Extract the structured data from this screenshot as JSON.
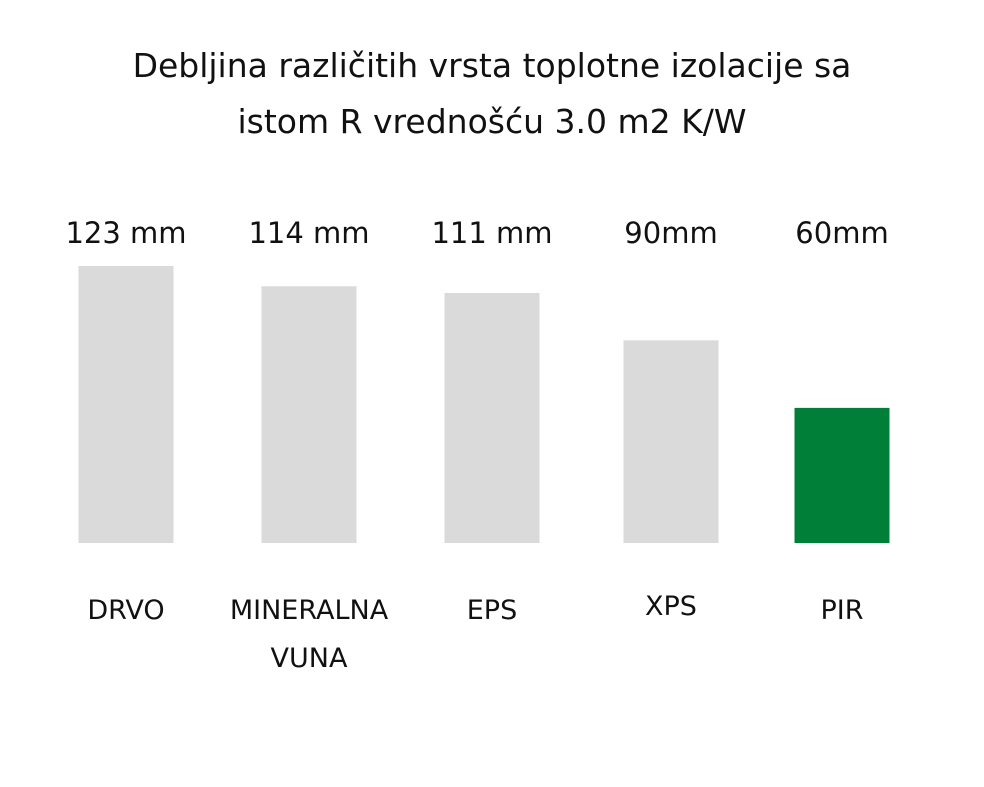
{
  "colors": {
    "background": "#ffffff",
    "default_bar": "#dadada",
    "highlight_bar": "#007f38",
    "text": "#111111"
  },
  "chart_data": {
    "type": "bar",
    "title_lines": [
      "Debljina različitih vrsta toplotne izolacije sa",
      "istom R vrednošću 3.0 m2 K/W"
    ],
    "categories": [
      "DRVO",
      "MINERALNA VUNA",
      "EPS",
      "XPS",
      "PIR"
    ],
    "category_label_lines": [
      [
        "DRVO"
      ],
      [
        "MINERALNA",
        "VUNA"
      ],
      [
        "EPS"
      ],
      [
        "XPS"
      ],
      [
        "PIR"
      ]
    ],
    "values": [
      123,
      114,
      111,
      90,
      60
    ],
    "unit": "mm",
    "data_labels": [
      "123 mm",
      "114 mm",
      "111 mm",
      "90mm",
      "60mm"
    ],
    "highlight": "PIR",
    "xlabel": "",
    "ylabel": "",
    "grid": false,
    "legend": "none",
    "ylim": [
      0,
      123
    ]
  }
}
